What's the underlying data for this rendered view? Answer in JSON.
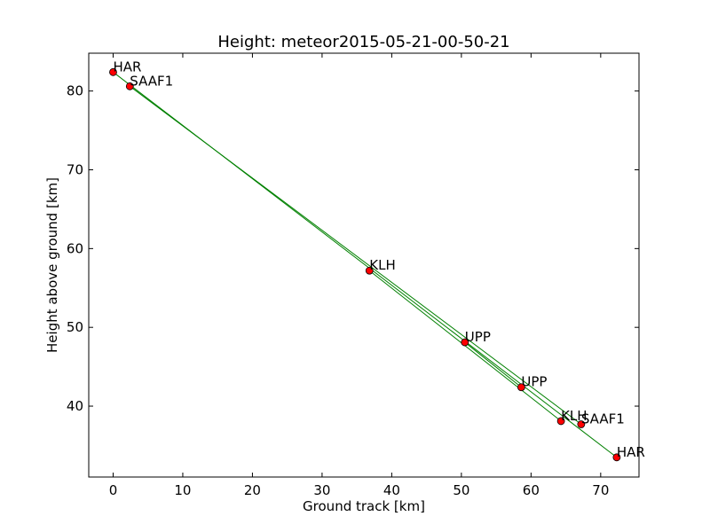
{
  "chart_data": {
    "type": "scatter",
    "title": "Height: meteor2015-05-21-00-50-21",
    "xlabel": "Ground track [km]",
    "ylabel": "Height above ground [km]",
    "xlim": [
      -3.5,
      75.5
    ],
    "ylim": [
      31.0,
      84.8
    ],
    "xticks": [
      0,
      10,
      20,
      30,
      40,
      50,
      60,
      70
    ],
    "yticks": [
      40,
      50,
      60,
      70,
      80
    ],
    "grid": false,
    "line_color": "#008000",
    "marker_color": "#ff0000",
    "points": [
      {
        "label": "HAR",
        "x": 0.0,
        "y": 82.4
      },
      {
        "label": "SAAF1",
        "x": 2.4,
        "y": 80.6
      },
      {
        "label": "KLH",
        "x": 36.8,
        "y": 57.2
      },
      {
        "label": "UPP",
        "x": 50.5,
        "y": 48.1
      },
      {
        "label": "UPP",
        "x": 58.6,
        "y": 42.4
      },
      {
        "label": "KLH",
        "x": 64.3,
        "y": 38.1
      },
      {
        "label": "SAAF1",
        "x": 67.2,
        "y": 37.7
      },
      {
        "label": "HAR",
        "x": 72.3,
        "y": 33.5
      }
    ],
    "lines": [
      {
        "from": 0,
        "to": 7
      },
      {
        "from": 1,
        "to": 6
      },
      {
        "from": 2,
        "to": 5
      },
      {
        "from": 3,
        "to": 4
      }
    ]
  }
}
